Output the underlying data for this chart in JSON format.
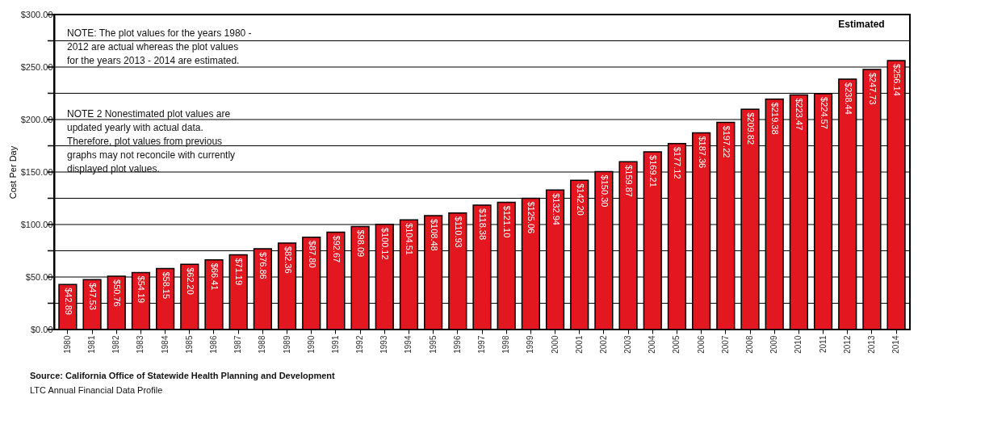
{
  "chart_data": {
    "type": "bar",
    "ylabel": "Cost Per Day",
    "categories": [
      "1980",
      "1981",
      "1982",
      "1983",
      "1984",
      "1985",
      "1986",
      "1987",
      "1988",
      "1989",
      "1990",
      "1991",
      "1992",
      "1993",
      "1994",
      "1995",
      "1996",
      "1997",
      "1998",
      "1999",
      "2000",
      "2001",
      "2002",
      "2003",
      "2004",
      "2005",
      "2006",
      "2007",
      "2008",
      "2009",
      "2010",
      "2011",
      "2012",
      "2013",
      "2014"
    ],
    "values": [
      42.89,
      47.53,
      50.76,
      54.19,
      58.15,
      62.2,
      66.41,
      71.19,
      76.86,
      82.36,
      87.8,
      92.67,
      98.09,
      100.12,
      104.51,
      108.48,
      110.93,
      118.38,
      121.1,
      125.06,
      132.94,
      142.2,
      150.3,
      159.87,
      169.21,
      177.12,
      187.36,
      197.22,
      209.82,
      219.38,
      223.47,
      224.57,
      238.44,
      247.73,
      256.14
    ],
    "value_labels": [
      "$42.89",
      "$47.53",
      "$50.76",
      "$54.19",
      "$58.15",
      "$62.20",
      "$66.41",
      "$71.19",
      "$76.86",
      "$82.36",
      "$87.80",
      "$92.67",
      "$98.09",
      "$100.12",
      "$104.51",
      "$108.48",
      "$110.93",
      "$118.38",
      "$121.10",
      "$125.06",
      "$132.94",
      "$142.20",
      "$150.30",
      "$159.87",
      "$169.21",
      "$177.12",
      "$187.36",
      "$197.22",
      "$209.82",
      "$219.38",
      "$223.47",
      "$224.57",
      "$238.44",
      "$247.73",
      "$256.14"
    ],
    "color": "#e3171f",
    "ylim": [
      0,
      300
    ],
    "yticks": [
      {
        "value": 0,
        "label": "$0.00"
      },
      {
        "value": 25,
        "label": null
      },
      {
        "value": 50,
        "label": "$50.00"
      },
      {
        "value": 75,
        "label": null
      },
      {
        "value": 100,
        "label": "$100.00"
      },
      {
        "value": 125,
        "label": null
      },
      {
        "value": 150,
        "label": "$150.00"
      },
      {
        "value": 175,
        "label": null
      },
      {
        "value": 200,
        "label": "$200.00"
      },
      {
        "value": 225,
        "label": null
      },
      {
        "value": 250,
        "label": "$250.00"
      },
      {
        "value": 275,
        "label": null
      },
      {
        "value": 300,
        "label": "$300.00"
      }
    ],
    "grid": "y",
    "annotations": [
      "NOTE: The plot values for the years 1980 - 2012 are actual whereas the plot values for the years 2013 - 2014 are estimated.",
      "NOTE 2 Nonestimated plot values are updated yearly with actual data. Therefore, plot values from previous graphs may not reconcile with currently displayed plot values.",
      "Estimated",
      "Source: California Office of Statewide Health Planning and Development",
      "LTC Annual Financial Data Profile"
    ]
  }
}
